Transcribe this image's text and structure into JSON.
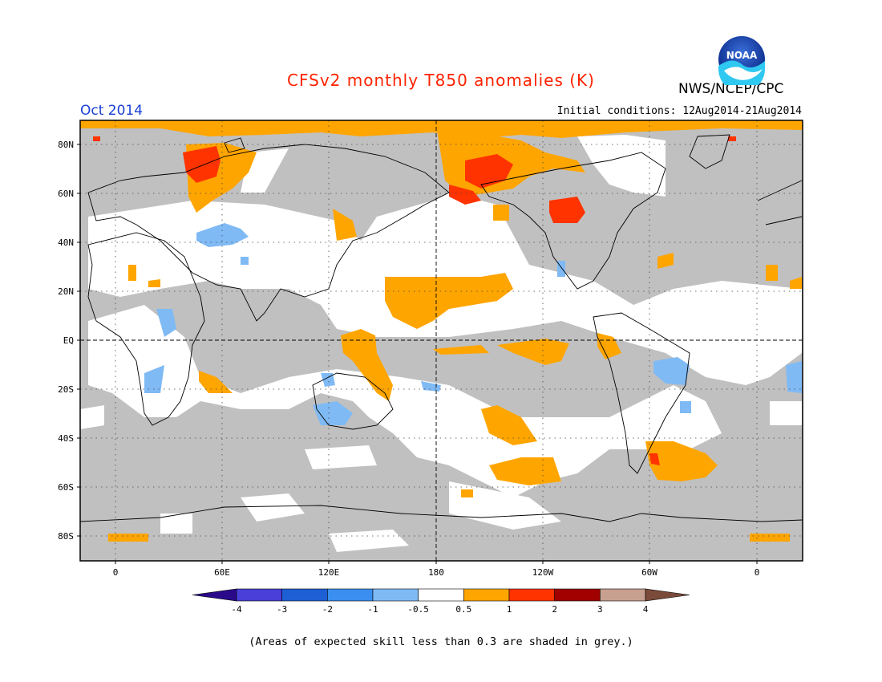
{
  "title": "CFSv2 monthly T850 anomalies (K)",
  "org": "NWS/NCEP/CPC",
  "logo_text": "NOAA",
  "month": "Oct 2014",
  "initial_conditions": "Initial conditions: 12Aug2014-21Aug2014",
  "lat_labels": [
    "80N",
    "60N",
    "40N",
    "20N",
    "EQ",
    "20S",
    "40S",
    "60S",
    "80S"
  ],
  "lon_labels": [
    "0",
    "60E",
    "120E",
    "180",
    "120W",
    "60W",
    "0"
  ],
  "colorbar": {
    "labels": [
      "-4",
      "-3",
      "-2",
      "-1",
      "-0.5",
      "0.5",
      "1",
      "2",
      "3",
      "4"
    ],
    "colors": [
      "#2a0a8a",
      "#4a3fd8",
      "#1e5fd6",
      "#3a8ff0",
      "#7fbaf5",
      "#ffffff",
      "#ffa500",
      "#ff3300",
      "#a00000",
      "#c8a090",
      "#7a4a3a"
    ]
  },
  "footnote": "(Areas of expected skill less than 0.3 are shaded in grey.)",
  "colors": {
    "grey": "#c0c0c0",
    "orange": "#ffa500",
    "red": "#ff3300",
    "blue_light": "#7fbaf5",
    "blue": "#3a8ff0"
  }
}
